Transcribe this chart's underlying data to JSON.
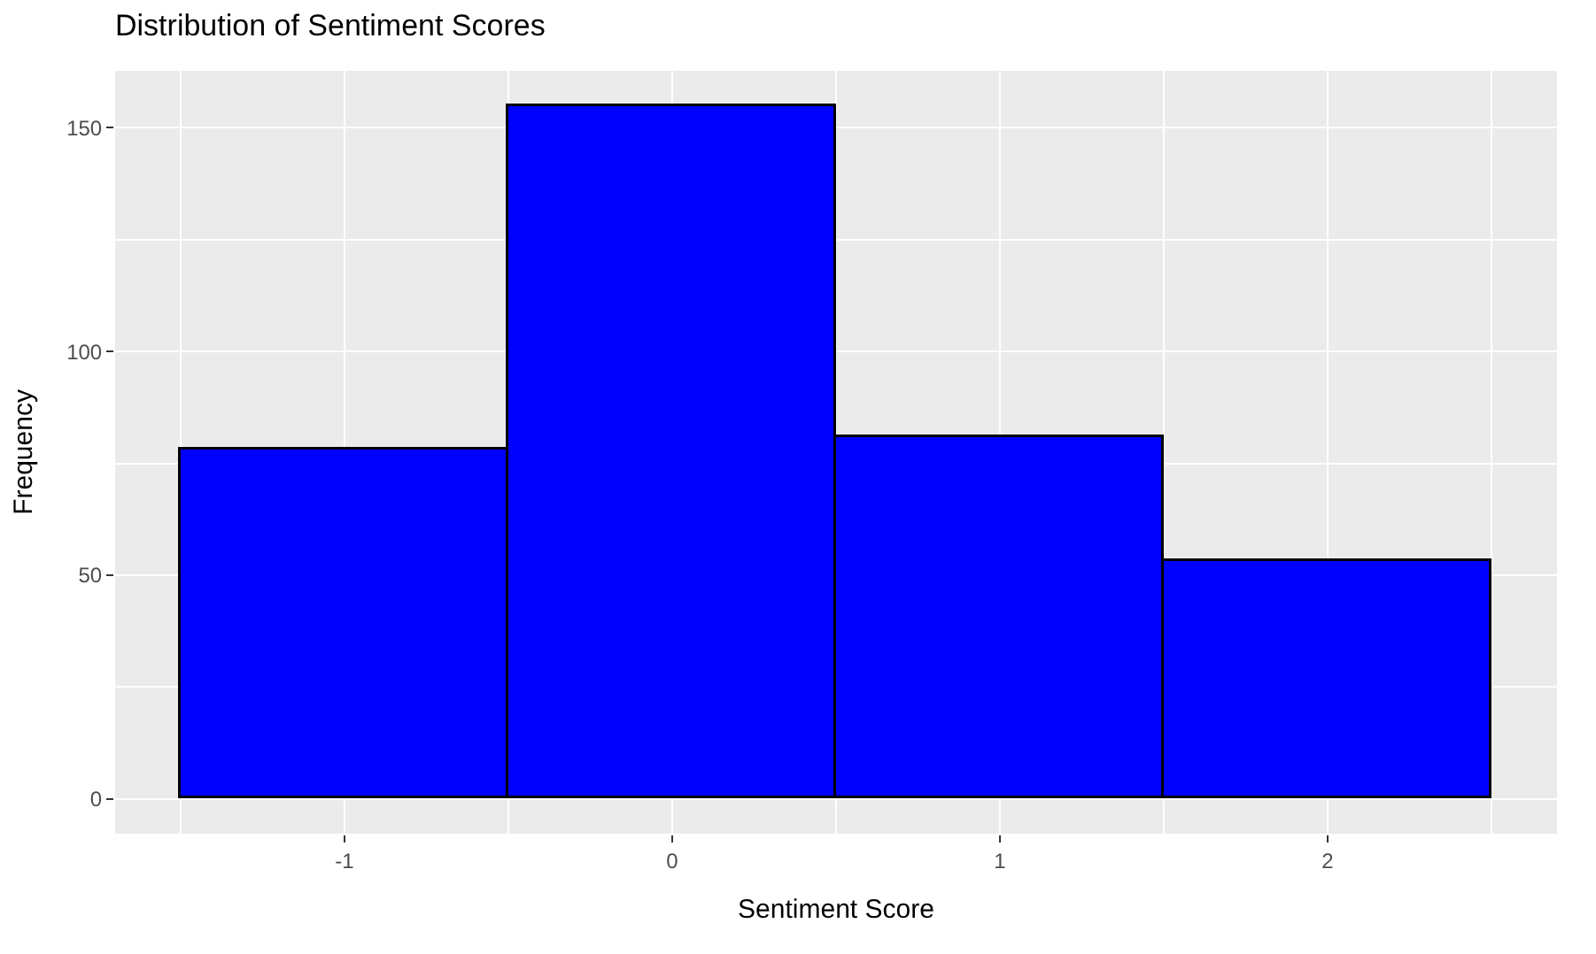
{
  "chart_data": {
    "type": "histogram",
    "title": "Distribution of Sentiment Scores",
    "xlabel": "Sentiment Score",
    "ylabel": "Frequency",
    "bins": [
      -1.5,
      -0.5,
      0.5,
      1.5,
      2.5
    ],
    "values": [
      78,
      155,
      81,
      53
    ],
    "color": "#0000ff",
    "xlim": [
      -1.7,
      2.7
    ],
    "xticks": [
      -1,
      0,
      1,
      2
    ],
    "ylim": [
      -7.75,
      162.75
    ],
    "yticks": [
      0,
      50,
      100,
      150
    ],
    "grid": true
  }
}
